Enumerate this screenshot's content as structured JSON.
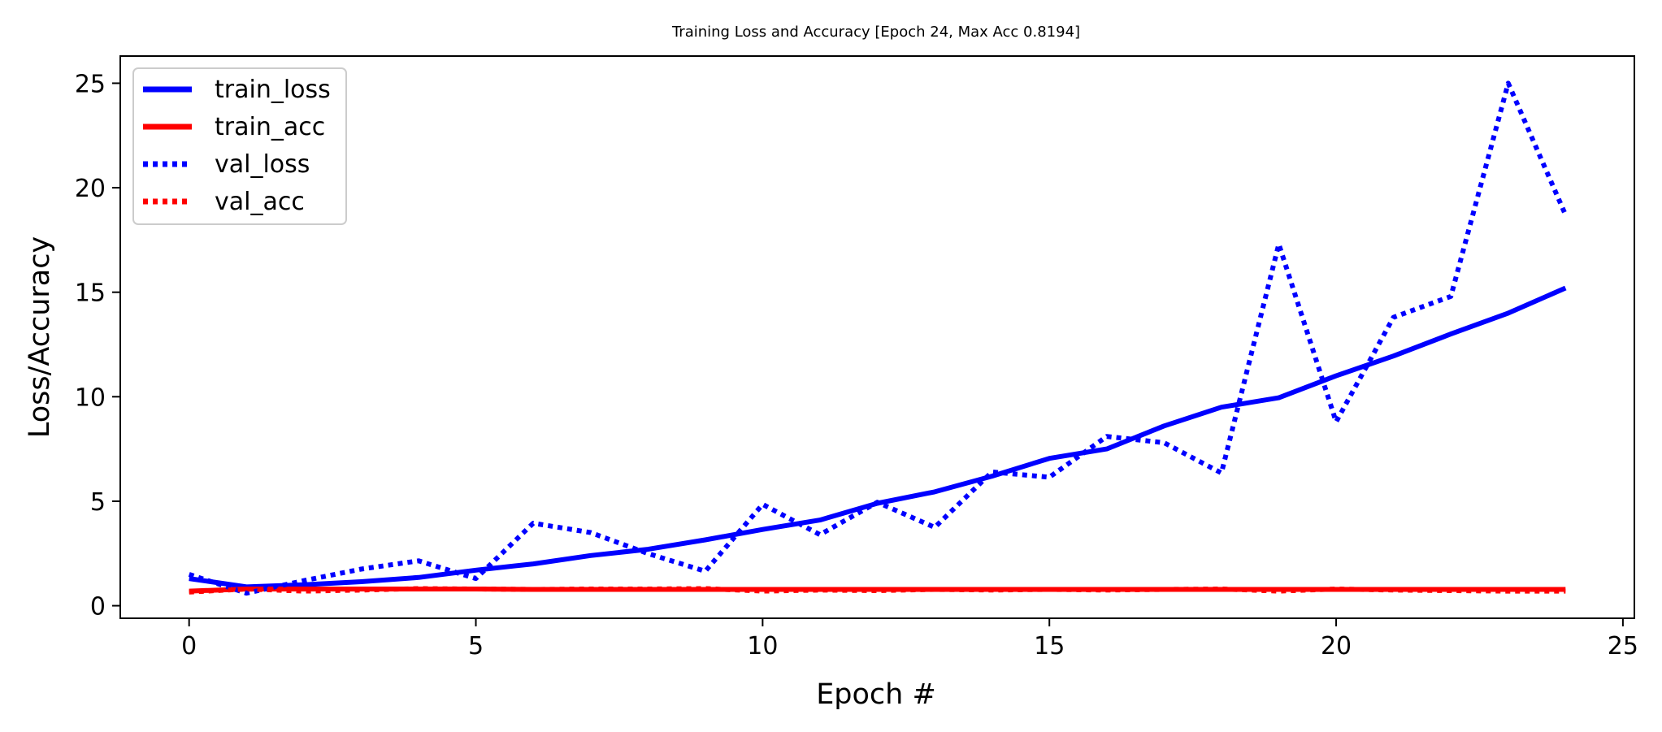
{
  "chart_data": {
    "type": "line",
    "title": "Training Loss and Accuracy [Epoch 24, Max Acc 0.8194]",
    "xlabel": "Epoch #",
    "ylabel": "Loss/Accuracy",
    "xlim": [
      -1.2,
      25.2
    ],
    "ylim": [
      -0.6,
      26.3
    ],
    "xticks": [
      0,
      5,
      10,
      15,
      20,
      25
    ],
    "xtick_labels": [
      "0",
      "5",
      "10",
      "15",
      "20",
      "25"
    ],
    "yticks": [
      0,
      5,
      10,
      15,
      20,
      25
    ],
    "ytick_labels": [
      "0",
      "5",
      "10",
      "15",
      "20",
      "25"
    ],
    "grid": false,
    "legend_position": "upper-left",
    "x": [
      0,
      1,
      2,
      3,
      4,
      5,
      6,
      7,
      8,
      9,
      10,
      11,
      12,
      13,
      14,
      15,
      16,
      17,
      18,
      19,
      20,
      21,
      22,
      23,
      24
    ],
    "series": [
      {
        "name": "train_loss",
        "color": "#0000ff",
        "style": "solid",
        "values": [
          1.3,
          0.9,
          1.0,
          1.15,
          1.35,
          1.7,
          2.0,
          2.4,
          2.7,
          3.15,
          3.65,
          4.1,
          4.9,
          5.45,
          6.2,
          7.05,
          7.5,
          8.6,
          9.5,
          9.95,
          11.0,
          11.95,
          13.0,
          14.0,
          15.2
        ]
      },
      {
        "name": "train_acc",
        "color": "#ff0000",
        "style": "solid",
        "values": [
          0.7,
          0.8,
          0.8,
          0.8,
          0.8,
          0.8,
          0.78,
          0.78,
          0.78,
          0.78,
          0.78,
          0.78,
          0.78,
          0.78,
          0.78,
          0.78,
          0.78,
          0.78,
          0.78,
          0.78,
          0.78,
          0.78,
          0.78,
          0.78,
          0.78
        ]
      },
      {
        "name": "val_loss",
        "color": "#0000ff",
        "style": "dotted",
        "values": [
          1.5,
          0.6,
          1.2,
          1.75,
          2.15,
          1.3,
          3.95,
          3.5,
          2.5,
          1.65,
          4.85,
          3.4,
          4.95,
          3.75,
          6.4,
          6.15,
          8.1,
          7.8,
          6.35,
          17.3,
          8.8,
          13.8,
          14.8,
          25.0,
          18.7
        ]
      },
      {
        "name": "val_acc",
        "color": "#ff0000",
        "style": "dotted",
        "values": [
          0.65,
          0.8,
          0.7,
          0.75,
          0.82,
          0.8,
          0.78,
          0.8,
          0.8,
          0.82,
          0.7,
          0.75,
          0.72,
          0.78,
          0.75,
          0.78,
          0.75,
          0.78,
          0.8,
          0.7,
          0.8,
          0.75,
          0.72,
          0.7,
          0.7
        ]
      }
    ]
  }
}
